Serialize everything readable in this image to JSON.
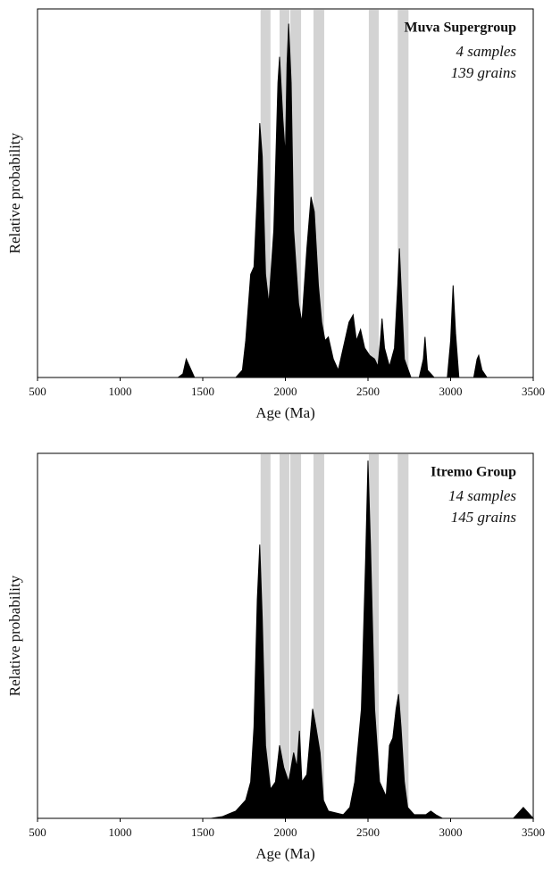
{
  "chart_data": [
    {
      "type": "area",
      "title": "Muva Supergroup",
      "annotations": [
        "4 samples",
        "139 grains"
      ],
      "x_label": "Age (Ma)",
      "y_label": "Relative probability",
      "color": "#000000",
      "band_color": "#d3d3d3",
      "bands": [
        [
          1850,
          1910
        ],
        [
          1965,
          2024
        ],
        [
          2030,
          2095
        ],
        [
          2170,
          2235
        ],
        [
          2505,
          2565
        ],
        [
          2680,
          2745
        ]
      ],
      "xlim": [
        500,
        3500
      ],
      "xticks": [
        500,
        1000,
        1500,
        2000,
        2500,
        3000,
        3500
      ],
      "ylim": [
        0,
        100
      ],
      "x": [
        500,
        1350,
        1380,
        1400,
        1420,
        1450,
        1700,
        1740,
        1760,
        1790,
        1810,
        1830,
        1845,
        1860,
        1880,
        1900,
        1930,
        1955,
        1965,
        1985,
        2000,
        2010,
        2020,
        2035,
        2050,
        2080,
        2100,
        2130,
        2155,
        2175,
        2200,
        2220,
        2240,
        2260,
        2290,
        2320,
        2360,
        2385,
        2410,
        2430,
        2455,
        2480,
        2510,
        2540,
        2560,
        2575,
        2585,
        2600,
        2630,
        2660,
        2680,
        2690,
        2705,
        2720,
        2760,
        2810,
        2835,
        2845,
        2860,
        2900,
        2980,
        3000,
        3015,
        3030,
        3050,
        3140,
        3160,
        3170,
        3190,
        3220,
        3500
      ],
      "values": [
        0,
        0,
        1,
        5,
        3,
        0,
        0,
        2,
        10,
        28,
        30,
        50,
        69,
        60,
        28,
        20,
        40,
        80,
        87,
        70,
        60,
        85,
        96,
        80,
        40,
        20,
        15,
        35,
        49,
        45,
        25,
        15,
        10,
        11,
        5,
        2,
        10,
        15,
        17,
        10,
        13,
        8,
        6,
        5,
        3,
        10,
        16,
        8,
        3,
        8,
        25,
        35,
        20,
        5,
        0,
        0,
        5,
        11,
        2,
        0,
        0,
        10,
        25,
        12,
        0,
        0,
        5,
        6,
        2,
        0,
        0
      ]
    },
    {
      "type": "area",
      "title": "Itremo Group",
      "annotations": [
        "14 samples",
        "145 grains"
      ],
      "x_label": "Age (Ma)",
      "y_label": "Relative probability",
      "color": "#000000",
      "band_color": "#d3d3d3",
      "bands": [
        [
          1850,
          1910
        ],
        [
          1965,
          2024
        ],
        [
          2030,
          2095
        ],
        [
          2170,
          2235
        ],
        [
          2505,
          2565
        ],
        [
          2680,
          2745
        ]
      ],
      "xlim": [
        500,
        3500
      ],
      "xticks": [
        500,
        1000,
        1500,
        2000,
        2500,
        3000,
        3500
      ],
      "ylim": [
        0,
        100
      ],
      "x": [
        500,
        1550,
        1620,
        1700,
        1760,
        1790,
        1810,
        1830,
        1845,
        1860,
        1880,
        1910,
        1940,
        1965,
        1990,
        2020,
        2050,
        2070,
        2085,
        2100,
        2130,
        2165,
        2185,
        2210,
        2230,
        2260,
        2350,
        2390,
        2420,
        2460,
        2485,
        2500,
        2515,
        2540,
        2570,
        2610,
        2630,
        2650,
        2670,
        2685,
        2700,
        2720,
        2740,
        2780,
        2850,
        2880,
        2910,
        2950,
        3380,
        3420,
        3440,
        3480,
        3500
      ],
      "values": [
        0,
        0,
        0.5,
        2,
        5,
        10,
        25,
        60,
        75,
        55,
        20,
        8,
        10,
        20,
        14,
        10,
        18,
        14,
        24,
        10,
        12,
        30,
        25,
        18,
        5,
        2,
        1,
        3,
        10,
        30,
        70,
        98,
        75,
        30,
        10,
        6,
        20,
        22,
        30,
        34,
        25,
        10,
        3,
        1,
        1,
        2,
        1,
        0,
        0,
        2,
        3,
        1,
        0
      ]
    }
  ]
}
